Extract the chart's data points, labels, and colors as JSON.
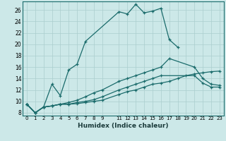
{
  "xlabel": "Humidex (Indice chaleur)",
  "bg_color": "#cce8e8",
  "line_color": "#1a6b6b",
  "grid_color": "#aacece",
  "xlim": [
    -0.5,
    23.5
  ],
  "ylim": [
    7.5,
    27.5
  ],
  "xticks": [
    0,
    1,
    2,
    3,
    4,
    5,
    6,
    7,
    8,
    9,
    11,
    12,
    13,
    14,
    15,
    16,
    17,
    18,
    19,
    20,
    21,
    22,
    23
  ],
  "yticks": [
    8,
    10,
    12,
    14,
    16,
    18,
    20,
    22,
    24,
    26
  ],
  "series": [
    {
      "x": [
        0,
        1,
        2,
        3,
        4,
        5,
        6,
        7,
        11,
        12,
        13,
        14,
        15,
        16,
        17,
        18
      ],
      "y": [
        9.5,
        8.0,
        9.0,
        13.0,
        11.0,
        15.5,
        16.5,
        20.5,
        25.7,
        25.3,
        27.0,
        25.5,
        25.8,
        26.3,
        20.8,
        19.5
      ]
    },
    {
      "x": [
        0,
        1,
        2,
        3,
        4,
        5,
        6,
        7,
        8,
        9,
        11,
        12,
        13,
        14,
        15,
        16,
        17,
        20,
        21,
        22,
        23
      ],
      "y": [
        9.5,
        8.0,
        9.0,
        9.2,
        9.5,
        9.8,
        10.2,
        10.8,
        11.5,
        12.0,
        13.5,
        14.0,
        14.5,
        15.0,
        15.5,
        16.0,
        17.5,
        16.0,
        14.0,
        13.0,
        12.8
      ]
    },
    {
      "x": [
        0,
        1,
        2,
        3,
        4,
        5,
        6,
        7,
        8,
        9,
        11,
        12,
        13,
        14,
        15,
        16,
        20,
        21,
        22,
        23
      ],
      "y": [
        9.5,
        8.0,
        9.0,
        9.2,
        9.5,
        9.5,
        9.8,
        10.0,
        10.3,
        10.8,
        12.0,
        12.5,
        13.0,
        13.5,
        14.0,
        14.5,
        14.5,
        13.2,
        12.5,
        12.5
      ]
    },
    {
      "x": [
        0,
        1,
        2,
        3,
        4,
        5,
        6,
        7,
        8,
        9,
        11,
        12,
        13,
        14,
        15,
        16,
        17,
        18,
        19,
        20,
        21,
        22,
        23
      ],
      "y": [
        9.5,
        8.0,
        9.0,
        9.2,
        9.5,
        9.5,
        9.6,
        9.8,
        10.0,
        10.2,
        11.2,
        11.7,
        12.0,
        12.5,
        13.0,
        13.2,
        13.5,
        14.0,
        14.5,
        14.8,
        15.0,
        15.2,
        15.3
      ]
    }
  ]
}
